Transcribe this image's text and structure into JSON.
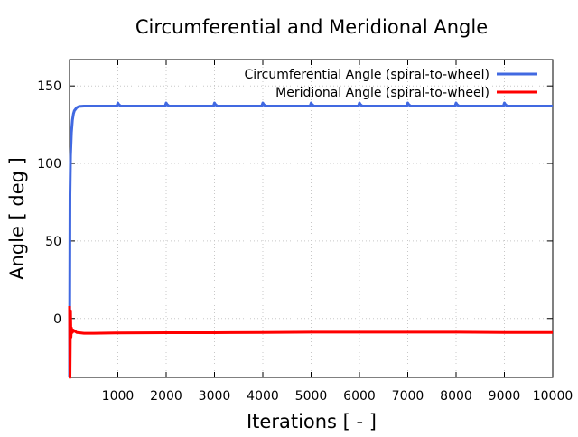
{
  "chart_data": {
    "type": "line",
    "title": "Circumferential and Meridional Angle",
    "xlabel": "Iterations [ - ]",
    "ylabel": "Angle [ deg ]",
    "xlim": [
      0,
      10000
    ],
    "ylim": [
      -38,
      167
    ],
    "xticks": [
      1000,
      2000,
      3000,
      4000,
      5000,
      6000,
      7000,
      8000,
      9000,
      10000
    ],
    "yticks": [
      0,
      50,
      100,
      150
    ],
    "grid": true,
    "legend_position": "top-right",
    "series": [
      {
        "name": "Circumferential Angle (spiral-to-wheel)",
        "color": "#4169e1",
        "x": [
          0,
          10,
          20,
          40,
          60,
          80,
          100,
          150,
          200,
          300,
          500,
          800,
          980,
          1000,
          1020,
          1060,
          1200,
          1800,
          1980,
          2000,
          2020,
          2060,
          2200,
          2800,
          2980,
          3000,
          3020,
          3060,
          3200,
          3800,
          3980,
          4000,
          4020,
          4060,
          4200,
          4800,
          4980,
          5000,
          5020,
          5060,
          5200,
          5800,
          5980,
          6000,
          6020,
          6060,
          6200,
          6800,
          6980,
          7000,
          7020,
          7060,
          7200,
          7800,
          7980,
          8000,
          8020,
          8060,
          8200,
          8800,
          8980,
          9000,
          9020,
          9060,
          9200,
          9800,
          10000
        ],
        "y": [
          -38,
          80,
          105,
          120,
          128,
          132,
          134,
          136,
          136.8,
          137,
          137,
          137,
          137,
          139,
          138,
          137,
          137,
          137,
          137,
          139,
          138,
          137,
          137,
          137,
          137,
          139,
          138,
          137,
          137,
          137,
          137,
          139,
          138,
          137,
          137,
          137,
          137,
          139,
          138,
          137,
          137,
          137,
          137,
          139,
          138,
          137,
          137,
          137,
          137,
          139,
          138,
          137,
          137,
          137,
          137,
          139,
          138,
          137,
          137,
          137,
          137,
          139,
          138,
          137,
          137,
          137,
          137
        ]
      },
      {
        "name": "Meridional Angle (spiral-to-wheel)",
        "color": "#ff0000",
        "x": [
          0,
          10,
          20,
          30,
          40,
          50,
          60,
          80,
          100,
          150,
          200,
          300,
          500,
          800,
          1000,
          2000,
          3000,
          4000,
          5000,
          6000,
          7000,
          8000,
          9000,
          10000
        ],
        "y": [
          8,
          -38,
          5,
          -12,
          -6,
          -8,
          -9,
          -7.5,
          -8,
          -9,
          -9.2,
          -9.5,
          -9.5,
          -9.4,
          -9.3,
          -9.2,
          -9.2,
          -9,
          -8.8,
          -8.8,
          -8.8,
          -8.8,
          -9,
          -9
        ]
      }
    ]
  }
}
